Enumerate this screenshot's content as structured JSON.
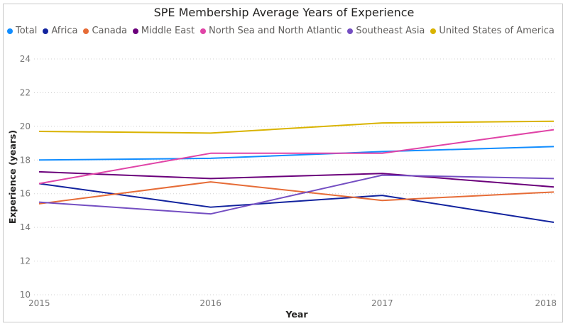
{
  "chart_data": {
    "type": "line",
    "title": "SPE Membership Average Years of Experience",
    "xlabel": "Year",
    "ylabel": "Experience (years)",
    "x": [
      "2015",
      "2016",
      "2017",
      "2018"
    ],
    "ylim": [
      10,
      24
    ],
    "yticks": [
      "10",
      "12",
      "14",
      "16",
      "18",
      "20",
      "22",
      "24"
    ],
    "grid": true,
    "legend_position": "top-left",
    "series": [
      {
        "name": "Total",
        "color": "#118dff",
        "values": [
          18.0,
          18.1,
          18.5,
          18.8
        ]
      },
      {
        "name": "Africa",
        "color": "#12239e",
        "values": [
          16.6,
          15.2,
          15.9,
          14.3
        ]
      },
      {
        "name": "Canada",
        "color": "#e66c37",
        "values": [
          15.4,
          16.7,
          15.6,
          16.1
        ]
      },
      {
        "name": "Middle East",
        "color": "#6b007b",
        "values": [
          17.3,
          16.9,
          17.2,
          16.4
        ]
      },
      {
        "name": "North Sea and North Atlantic",
        "color": "#e044a7",
        "values": [
          16.6,
          18.4,
          18.4,
          19.8
        ]
      },
      {
        "name": "Southeast Asia",
        "color": "#744ec2",
        "values": [
          15.5,
          14.8,
          17.1,
          16.9
        ]
      },
      {
        "name": "United States of America",
        "color": "#d9b300",
        "values": [
          19.7,
          19.6,
          20.2,
          20.3
        ]
      }
    ]
  }
}
